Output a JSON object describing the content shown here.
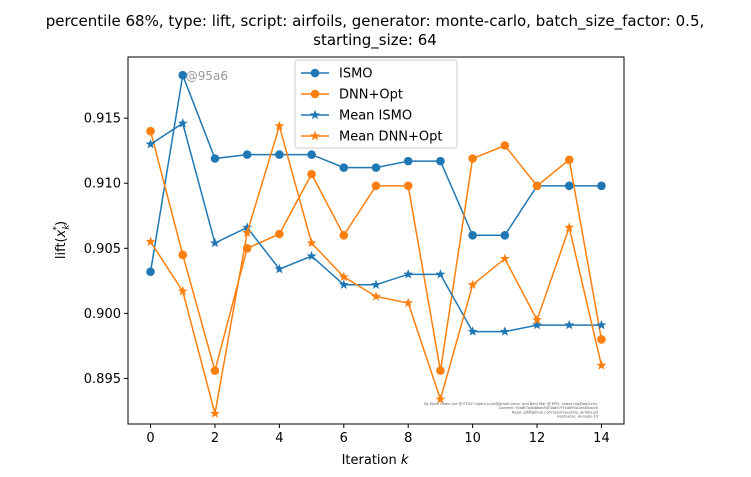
{
  "chart_data": {
    "type": "line",
    "title_line1": "percentile 68%, type: lift, script: airfoils, generator: monte-carlo, batch_size_factor: 0.5,",
    "title_line2": "starting_size: 64",
    "xlabel_prefix": "Iteration ",
    "xlabel_var": "k",
    "ylabel_prefix": "lift(",
    "ylabel_x": "x",
    "ylabel_sub": "k",
    "ylabel_sup": "*",
    "ylabel_suffix": ")",
    "x": [
      0,
      1,
      2,
      3,
      4,
      5,
      6,
      7,
      8,
      9,
      10,
      11,
      12,
      13,
      14
    ],
    "xlim": [
      -0.7,
      14.7
    ],
    "ylim": [
      0.8915,
      0.9197
    ],
    "xticks": [
      0,
      2,
      4,
      6,
      8,
      10,
      12,
      14
    ],
    "yticks": [
      0.895,
      0.9,
      0.905,
      0.91,
      0.915
    ],
    "ytick_labels": [
      "0.895",
      "0.900",
      "0.905",
      "0.910",
      "0.915"
    ],
    "grid": false,
    "legend_position": "top-center",
    "series": [
      {
        "name": "ISMO",
        "color": "#1f77b4",
        "marker": "circle",
        "values": [
          0.9032,
          0.9183,
          0.9119,
          0.9122,
          0.9122,
          0.9122,
          0.9112,
          0.9112,
          0.9117,
          0.9117,
          0.906,
          0.906,
          0.9098,
          0.9098,
          0.9098
        ]
      },
      {
        "name": "DNN+Opt",
        "color": "#ff7f0e",
        "marker": "circle",
        "values": [
          0.914,
          0.9045,
          0.8956,
          0.905,
          0.9061,
          0.9107,
          0.906,
          0.9098,
          0.9098,
          0.8956,
          0.9119,
          0.9129,
          0.9098,
          0.9118,
          0.898
        ]
      },
      {
        "name": "Mean ISMO",
        "color": "#1f77b4",
        "marker": "star",
        "values": [
          0.913,
          0.9146,
          0.9054,
          0.9066,
          0.9034,
          0.9044,
          0.9022,
          0.9022,
          0.903,
          0.903,
          0.8986,
          0.8986,
          0.8991,
          0.8991,
          0.8991
        ]
      },
      {
        "name": "Mean DNN+Opt",
        "color": "#ff7f0e",
        "marker": "star",
        "values": [
          0.9055,
          0.9017,
          0.8923,
          0.9062,
          0.9144,
          0.9054,
          0.9028,
          0.9013,
          0.9008,
          0.8934,
          0.9022,
          0.9042,
          0.8995,
          0.9066,
          0.896
        ]
      }
    ],
    "annotation": "@95a6",
    "annotation_x": 1,
    "annotation_y": 0.9183,
    "watermark_lines": [
      "By Kjetil Olsen Lye @ ETHZ <kjetil.o.lye@gmail.com> and Benj Mar @ EPFL <benj.raq@epfl.ch>",
      "Commit: 95a6f7a4b8eab93f34d97f75db90a1ea00ace0",
      "Repo: git@github.com:kjetil-lye/ismo_airfoils.git",
      "Hostname: ao-login-19"
    ]
  }
}
